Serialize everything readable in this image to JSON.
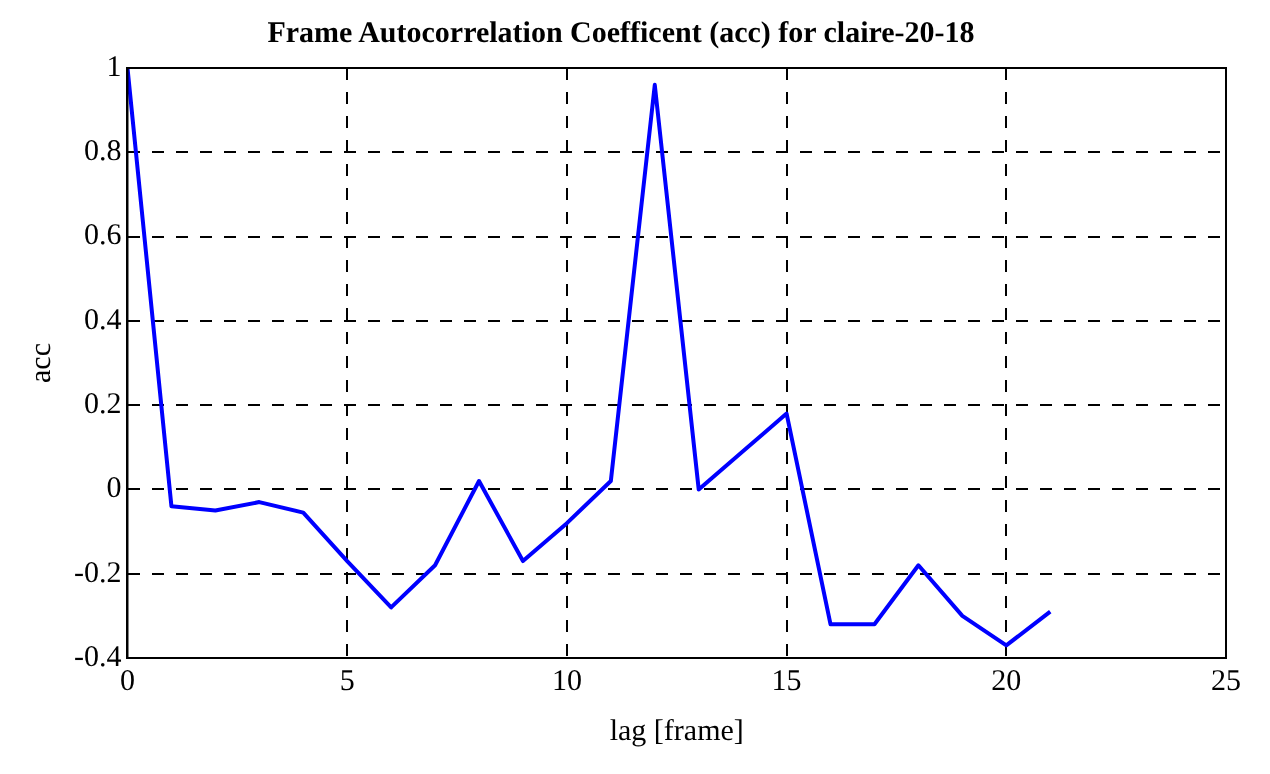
{
  "chart_data": {
    "type": "line",
    "title": "Frame Autocorrelation Coefficent (acc) for claire-20-18",
    "xlabel": "lag [frame]",
    "ylabel": "acc",
    "x": [
      0,
      1,
      2,
      3,
      4,
      5,
      6,
      7,
      8,
      9,
      10,
      11,
      12,
      13,
      14,
      15,
      16,
      17,
      18,
      19,
      20,
      21
    ],
    "series": [
      {
        "color": "#0000ff",
        "values": [
          1.0,
          -0.04,
          -0.05,
          -0.03,
          -0.055,
          -0.17,
          -0.28,
          -0.18,
          0.02,
          -0.17,
          -0.08,
          0.02,
          0.96,
          0.0,
          0.09,
          0.18,
          -0.32,
          -0.32,
          -0.18,
          -0.3,
          -0.37,
          -0.29
        ]
      }
    ],
    "xlim": [
      0,
      25
    ],
    "xticks": [
      0,
      5,
      10,
      15,
      20,
      25
    ],
    "ylim": [
      -0.4,
      1
    ],
    "yticks": [
      -0.4,
      -0.2,
      0,
      0.2,
      0.4,
      0.6,
      0.8,
      1
    ],
    "grid": true,
    "marker": "none",
    "line_style": "solid",
    "legend": false
  }
}
